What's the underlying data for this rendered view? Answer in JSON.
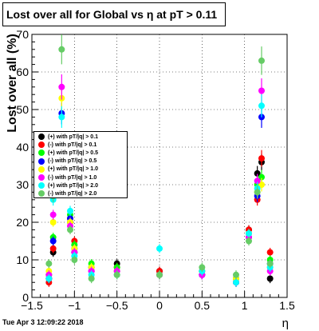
{
  "title": "Lost over all for Global vs   η at pT > 0.11",
  "timestamp": "Tue Apr  3 12:09:22 2018",
  "chart_data": {
    "type": "scatter",
    "title": "Lost over all for Global vs   η at pT > 0.11",
    "xlabel": "η",
    "ylabel": "Lost over all (%)",
    "xlim": [
      -1.5,
      1.5
    ],
    "ylim": [
      0,
      70
    ],
    "xticks": [
      "−1.5",
      "−1",
      "−0.5",
      "0",
      "0.5",
      "1",
      "1.5"
    ],
    "yticks": [
      "0",
      "10",
      "20",
      "30",
      "40",
      "50",
      "60",
      "70"
    ],
    "grid": true,
    "legend_position": "left-middle",
    "series": [
      {
        "name": "(+) with pT/|q| > 0.1",
        "color": "#000000",
        "x": [
          -1.3,
          -1.25,
          -1.15,
          -1.05,
          -1.0,
          -0.8,
          -0.5,
          0.0,
          0.5,
          0.9,
          1.05,
          1.15,
          1.2,
          1.3
        ],
        "y": [
          5,
          12,
          32,
          20,
          12,
          8,
          9,
          7,
          7,
          5,
          18,
          33,
          36,
          5
        ]
      },
      {
        "name": "(-) with pT/|q| > 0.1",
        "color": "#ff0000",
        "x": [
          -1.3,
          -1.25,
          -1.15,
          -1.05,
          -1.0,
          -0.8,
          -0.5,
          0.0,
          0.5,
          0.9,
          1.05,
          1.15,
          1.2,
          1.3
        ],
        "y": [
          4,
          13,
          31,
          21,
          15,
          7,
          8,
          7,
          7,
          4,
          18,
          26,
          37,
          12
        ]
      },
      {
        "name": "(+) with pT/|q| > 0.5",
        "color": "#00ff00",
        "x": [
          -1.3,
          -1.25,
          -1.15,
          -1.05,
          -1.0,
          -0.8,
          -0.5,
          0.0,
          0.5,
          0.9,
          1.05,
          1.15,
          1.2,
          1.3
        ],
        "y": [
          6,
          16,
          38,
          22,
          14,
          9,
          8,
          6,
          6,
          5,
          17,
          30,
          32,
          10
        ]
      },
      {
        "name": "(-) with pT/|q| > 0.5",
        "color": "#0000ff",
        "x": [
          -1.3,
          -1.25,
          -1.15,
          -1.05,
          -1.0,
          -0.8,
          -0.5,
          0.0,
          0.5,
          0.9,
          1.05,
          1.15,
          1.2,
          1.3
        ],
        "y": [
          5,
          15,
          49,
          21,
          13,
          7,
          7,
          6,
          6,
          4,
          16,
          27,
          48,
          9
        ]
      },
      {
        "name": "(+) with pT/|q| > 1.0",
        "color": "#ffff00",
        "x": [
          -1.3,
          -1.25,
          -1.15,
          -1.05,
          -1.0,
          -0.8,
          -0.5,
          0.0,
          0.5,
          0.9,
          1.05,
          1.15,
          1.2,
          1.3
        ],
        "y": [
          7,
          20,
          53,
          20,
          13,
          8,
          7,
          6,
          7,
          5,
          17,
          28,
          30,
          8
        ]
      },
      {
        "name": "(-) with pT/|q| > 1.0",
        "color": "#ff00ff",
        "x": [
          -1.3,
          -1.25,
          -1.15,
          -1.05,
          -1.0,
          -0.8,
          -0.5,
          0.0,
          0.5,
          0.9,
          1.05,
          1.15,
          1.2,
          1.3
        ],
        "y": [
          6,
          22,
          56,
          19,
          12,
          7,
          7,
          6,
          6,
          4,
          16,
          31,
          55,
          7
        ]
      },
      {
        "name": "(+) with pT/|q| > 2.0",
        "color": "#00ffff",
        "x": [
          -1.3,
          -1.25,
          -1.15,
          -1.05,
          -1.0,
          -0.8,
          -0.5,
          0.0,
          0.5,
          0.9,
          1.05,
          1.15,
          1.2,
          1.3
        ],
        "y": [
          5,
          26,
          48,
          23,
          11,
          6,
          6,
          13,
          7,
          4,
          17,
          29,
          51,
          8
        ]
      },
      {
        "name": "(-) with pT/|q| > 2.0",
        "color": "#66cc66",
        "x": [
          -1.3,
          -1.25,
          -1.15,
          -1.05,
          -1.0,
          -0.8,
          -0.5,
          0.0,
          0.5,
          0.9,
          1.05,
          1.15,
          1.2,
          1.3
        ],
        "y": [
          9,
          27,
          66,
          18,
          10,
          5,
          6,
          6,
          8,
          6,
          15,
          28,
          63,
          9
        ]
      }
    ]
  }
}
